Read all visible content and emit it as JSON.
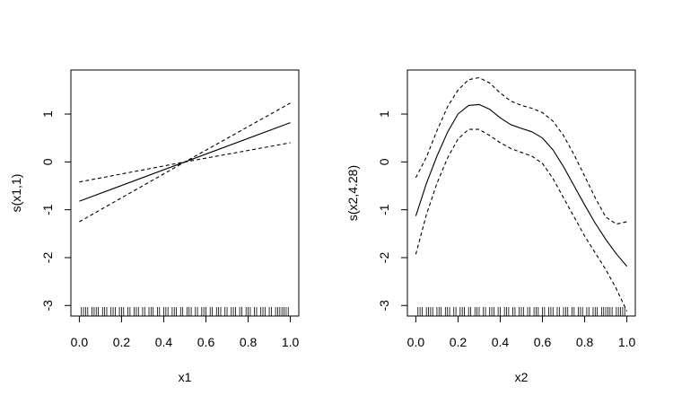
{
  "chart_data": [
    {
      "type": "line",
      "title": "",
      "xlabel": "x1",
      "ylabel": "s(x1,1)",
      "xlim": [
        -0.04,
        1.04
      ],
      "ylim": [
        -3.22,
        1.92
      ],
      "xticks": [
        0.0,
        0.2,
        0.4,
        0.6,
        0.8,
        1.0
      ],
      "xtick_labels": [
        "0.0",
        "0.2",
        "0.4",
        "0.6",
        "0.8",
        "1.0"
      ],
      "yticks": [
        -3,
        -2,
        -1,
        0,
        1
      ],
      "ytick_labels": [
        "-3",
        "-2",
        "-1",
        "0",
        "1"
      ],
      "grid": false,
      "legend": "none",
      "series": [
        {
          "style": "solid",
          "x": [
            0,
            1
          ],
          "y": [
            -0.82,
            0.82
          ]
        },
        {
          "style": "dashed",
          "x": [
            0,
            0.5,
            1
          ],
          "y": [
            -1.25,
            0,
            1.23
          ]
        },
        {
          "style": "dashed",
          "x": [
            0,
            0.5,
            1
          ],
          "y": [
            -0.42,
            0,
            0.4
          ]
        }
      ],
      "rug": [
        0.01,
        0.02,
        0.03,
        0.04,
        0.06,
        0.07,
        0.08,
        0.09,
        0.11,
        0.12,
        0.13,
        0.15,
        0.16,
        0.17,
        0.19,
        0.2,
        0.21,
        0.23,
        0.24,
        0.26,
        0.27,
        0.28,
        0.3,
        0.31,
        0.33,
        0.34,
        0.35,
        0.37,
        0.38,
        0.4,
        0.41,
        0.42,
        0.44,
        0.45,
        0.46,
        0.48,
        0.49,
        0.51,
        0.52,
        0.53,
        0.55,
        0.56,
        0.58,
        0.59,
        0.6,
        0.62,
        0.63,
        0.65,
        0.66,
        0.67,
        0.69,
        0.7,
        0.72,
        0.73,
        0.74,
        0.76,
        0.77,
        0.79,
        0.8,
        0.81,
        0.83,
        0.84,
        0.86,
        0.87,
        0.88,
        0.9,
        0.91,
        0.93,
        0.94,
        0.95,
        0.96,
        0.97,
        0.98,
        0.99
      ]
    },
    {
      "type": "line",
      "title": "",
      "xlabel": "x2",
      "ylabel": "s(x2,4.28)",
      "xlim": [
        -0.04,
        1.04
      ],
      "ylim": [
        -3.22,
        1.92
      ],
      "xticks": [
        0.0,
        0.2,
        0.4,
        0.6,
        0.8,
        1.0
      ],
      "xtick_labels": [
        "0.0",
        "0.2",
        "0.4",
        "0.6",
        "0.8",
        "1.0"
      ],
      "yticks": [
        -3,
        -2,
        -1,
        0,
        1
      ],
      "ytick_labels": [
        "-3",
        "-2",
        "-1",
        "0",
        "1"
      ],
      "grid": false,
      "legend": "none",
      "series": [
        {
          "style": "solid",
          "x": [
            0,
            0.05,
            0.1,
            0.15,
            0.2,
            0.25,
            0.3,
            0.35,
            0.4,
            0.45,
            0.5,
            0.55,
            0.6,
            0.65,
            0.7,
            0.75,
            0.8,
            0.85,
            0.9,
            0.95,
            1.0
          ],
          "y": [
            -1.13,
            -0.45,
            0.12,
            0.62,
            1.0,
            1.18,
            1.2,
            1.1,
            0.92,
            0.78,
            0.7,
            0.63,
            0.5,
            0.25,
            -0.1,
            -0.5,
            -0.9,
            -1.28,
            -1.62,
            -1.92,
            -2.18
          ]
        },
        {
          "style": "dashed",
          "x": [
            0,
            0.05,
            0.1,
            0.15,
            0.2,
            0.25,
            0.3,
            0.35,
            0.4,
            0.45,
            0.5,
            0.55,
            0.6,
            0.65,
            0.7,
            0.75,
            0.8,
            0.85,
            0.9,
            0.95,
            1.0
          ],
          "y": [
            -0.33,
            0.1,
            0.65,
            1.15,
            1.5,
            1.72,
            1.76,
            1.65,
            1.44,
            1.27,
            1.18,
            1.12,
            1.03,
            0.85,
            0.55,
            0.15,
            -0.3,
            -0.75,
            -1.15,
            -1.3,
            -1.25
          ]
        },
        {
          "style": "dashed",
          "x": [
            0,
            0.05,
            0.1,
            0.15,
            0.2,
            0.25,
            0.3,
            0.35,
            0.4,
            0.45,
            0.5,
            0.55,
            0.6,
            0.65,
            0.7,
            0.75,
            0.8,
            0.85,
            0.9,
            0.95,
            1.0
          ],
          "y": [
            -1.93,
            -1.1,
            -0.45,
            0.08,
            0.48,
            0.68,
            0.68,
            0.55,
            0.4,
            0.28,
            0.2,
            0.12,
            -0.03,
            -0.35,
            -0.75,
            -1.15,
            -1.55,
            -1.9,
            -2.25,
            -2.65,
            -3.12
          ]
        }
      ],
      "rug": [
        0.01,
        0.02,
        0.03,
        0.05,
        0.06,
        0.07,
        0.08,
        0.1,
        0.11,
        0.12,
        0.14,
        0.15,
        0.16,
        0.18,
        0.19,
        0.21,
        0.22,
        0.23,
        0.25,
        0.26,
        0.28,
        0.29,
        0.3,
        0.32,
        0.33,
        0.35,
        0.36,
        0.37,
        0.39,
        0.4,
        0.42,
        0.43,
        0.44,
        0.46,
        0.47,
        0.49,
        0.5,
        0.51,
        0.53,
        0.54,
        0.56,
        0.57,
        0.58,
        0.6,
        0.61,
        0.63,
        0.64,
        0.65,
        0.67,
        0.68,
        0.7,
        0.71,
        0.72,
        0.74,
        0.75,
        0.77,
        0.78,
        0.79,
        0.81,
        0.82,
        0.84,
        0.85,
        0.86,
        0.88,
        0.89,
        0.9,
        0.91,
        0.92,
        0.93,
        0.95,
        0.96,
        0.97,
        0.98,
        0.99
      ]
    }
  ]
}
